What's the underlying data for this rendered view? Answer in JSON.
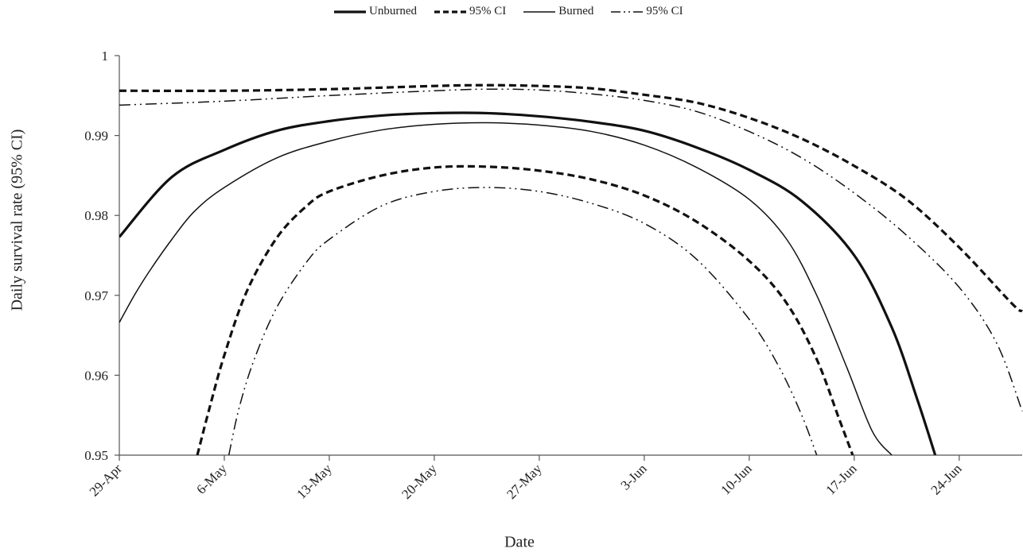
{
  "chart_data": {
    "type": "line",
    "title": "",
    "xlabel": "Date",
    "ylabel": "Daily survival rate (95% CI)",
    "ylim": [
      0.95,
      1.0
    ],
    "yticks": [
      0.95,
      0.96,
      0.97,
      0.98,
      0.99,
      1
    ],
    "ytick_labels": [
      "0.95",
      "0.96",
      "0.97",
      "0.98",
      "0.99",
      "1"
    ],
    "x_range_days": [
      0,
      60.2
    ],
    "xtick_days": [
      0,
      7,
      14,
      21,
      28,
      35,
      42,
      49,
      56
    ],
    "xtick_labels": [
      "29-Apr",
      "6-May",
      "13-May",
      "20-May",
      "27-May",
      "3-Jun",
      "10-Jun",
      "17-Jun",
      "24-Jun"
    ],
    "legend_position": "top",
    "series": [
      {
        "name": "Unburned",
        "style": "thick-solid",
        "points": [
          [
            0,
            0.9773
          ],
          [
            3.5,
            0.9848
          ],
          [
            7,
            0.9882
          ],
          [
            10.5,
            0.9906
          ],
          [
            14,
            0.9918
          ],
          [
            17.5,
            0.9925
          ],
          [
            21,
            0.9928
          ],
          [
            24.5,
            0.9928
          ],
          [
            28,
            0.9924
          ],
          [
            31.5,
            0.9917
          ],
          [
            35,
            0.9906
          ],
          [
            38.5,
            0.9885
          ],
          [
            42,
            0.9857
          ],
          [
            45.5,
            0.9818
          ],
          [
            49,
            0.975
          ],
          [
            51.5,
            0.966
          ],
          [
            53.2,
            0.957
          ],
          [
            54.4,
            0.95
          ]
        ]
      },
      {
        "name": "95% CI",
        "style": "thick-dashed",
        "points": [
          [
            0,
            0.9956
          ],
          [
            7,
            0.9956
          ],
          [
            14,
            0.9958
          ],
          [
            21,
            0.9962
          ],
          [
            24.5,
            0.9963
          ],
          [
            28,
            0.9962
          ],
          [
            31.5,
            0.9959
          ],
          [
            35,
            0.9951
          ],
          [
            38.5,
            0.9941
          ],
          [
            42,
            0.9922
          ],
          [
            45.5,
            0.9896
          ],
          [
            49,
            0.9862
          ],
          [
            52.5,
            0.982
          ],
          [
            56,
            0.976
          ],
          [
            59.5,
            0.969
          ],
          [
            60.2,
            0.968
          ]
        ]
      },
      {
        "name": "",
        "style": "thick-dashed",
        "points": [
          [
            5.2,
            0.95
          ],
          [
            6,
            0.9558
          ],
          [
            7,
            0.9625
          ],
          [
            8.5,
            0.9705
          ],
          [
            10.5,
            0.9772
          ],
          [
            12.5,
            0.9812
          ],
          [
            14,
            0.983
          ],
          [
            17.5,
            0.985
          ],
          [
            21,
            0.986
          ],
          [
            24.5,
            0.9861
          ],
          [
            28,
            0.9856
          ],
          [
            31.5,
            0.9845
          ],
          [
            35,
            0.9825
          ],
          [
            38.5,
            0.9792
          ],
          [
            42,
            0.9743
          ],
          [
            44.5,
            0.969
          ],
          [
            46.5,
            0.962
          ],
          [
            48,
            0.9545
          ],
          [
            48.9,
            0.95
          ]
        ]
      },
      {
        "name": "Burned",
        "style": "thin-solid",
        "points": [
          [
            0,
            0.9666
          ],
          [
            1,
            0.97
          ],
          [
            2,
            0.973
          ],
          [
            3.5,
            0.977
          ],
          [
            5,
            0.9805
          ],
          [
            7,
            0.9835
          ],
          [
            10.5,
            0.9872
          ],
          [
            14,
            0.9893
          ],
          [
            17.5,
            0.9907
          ],
          [
            21,
            0.9914
          ],
          [
            24.5,
            0.9916
          ],
          [
            28,
            0.9913
          ],
          [
            31.5,
            0.9905
          ],
          [
            35,
            0.9888
          ],
          [
            38.5,
            0.986
          ],
          [
            42,
            0.982
          ],
          [
            44.5,
            0.977
          ],
          [
            46.5,
            0.97
          ],
          [
            48.5,
            0.961
          ],
          [
            50.2,
            0.953
          ],
          [
            51.5,
            0.95
          ]
        ]
      },
      {
        "name": "95% CI",
        "style": "thin-dashdot",
        "points": [
          [
            0,
            0.9938
          ],
          [
            7,
            0.9943
          ],
          [
            14,
            0.995
          ],
          [
            21,
            0.9956
          ],
          [
            24.5,
            0.9958
          ],
          [
            28,
            0.9957
          ],
          [
            31.5,
            0.9952
          ],
          [
            35,
            0.9944
          ],
          [
            38.5,
            0.993
          ],
          [
            42,
            0.9905
          ],
          [
            45.5,
            0.9872
          ],
          [
            49,
            0.9828
          ],
          [
            52.5,
            0.9775
          ],
          [
            56,
            0.971
          ],
          [
            58.5,
            0.964
          ],
          [
            60.2,
            0.9555
          ]
        ]
      },
      {
        "name": "",
        "style": "thin-dashdot",
        "points": [
          [
            7.3,
            0.95
          ],
          [
            8,
            0.956
          ],
          [
            9,
            0.962
          ],
          [
            10.5,
            0.9685
          ],
          [
            12.5,
            0.9742
          ],
          [
            14,
            0.977
          ],
          [
            17.5,
            0.9812
          ],
          [
            21,
            0.983
          ],
          [
            24.5,
            0.9835
          ],
          [
            28,
            0.983
          ],
          [
            31.5,
            0.9815
          ],
          [
            35,
            0.979
          ],
          [
            38.5,
            0.9745
          ],
          [
            42,
            0.967
          ],
          [
            44,
            0.961
          ],
          [
            45.5,
            0.955
          ],
          [
            46.5,
            0.95
          ]
        ]
      }
    ]
  }
}
